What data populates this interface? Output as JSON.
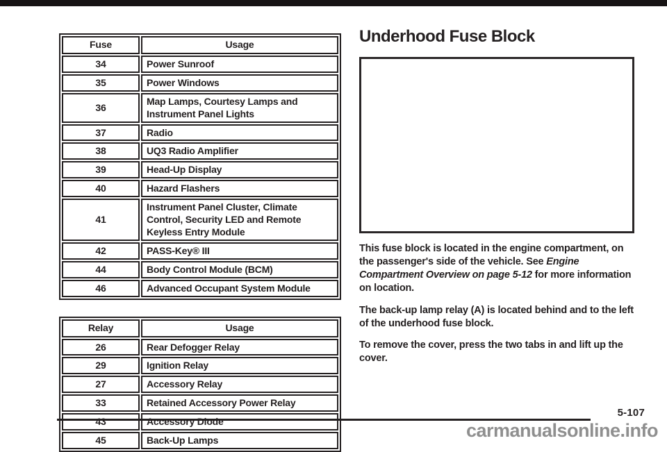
{
  "page": {
    "heading": "Underhood Fuse Block",
    "page_number": "5-107",
    "watermark": "carmanualsonline.info"
  },
  "fuse_table": {
    "headers": [
      "Fuse",
      "Usage"
    ],
    "rows": [
      {
        "num": "34",
        "usage": "Power Sunroof"
      },
      {
        "num": "35",
        "usage": "Power Windows"
      },
      {
        "num": "36",
        "usage": "Map Lamps, Courtesy Lamps and Instrument Panel Lights"
      },
      {
        "num": "37",
        "usage": "Radio"
      },
      {
        "num": "38",
        "usage": "UQ3 Radio Amplifier"
      },
      {
        "num": "39",
        "usage": "Head-Up Display"
      },
      {
        "num": "40",
        "usage": "Hazard Flashers"
      },
      {
        "num": "41",
        "usage": "Instrument Panel Cluster, Climate Control, Security LED and Remote Keyless Entry Module"
      },
      {
        "num": "42",
        "usage": "PASS-Key® III"
      },
      {
        "num": "44",
        "usage": "Body Control Module (BCM)"
      },
      {
        "num": "46",
        "usage": "Advanced Occupant System Module"
      }
    ]
  },
  "relay_table": {
    "headers": [
      "Relay",
      "Usage"
    ],
    "rows": [
      {
        "num": "26",
        "usage": "Rear Defogger Relay"
      },
      {
        "num": "29",
        "usage": "Ignition Relay"
      },
      {
        "num": "27",
        "usage": "Accessory Relay"
      },
      {
        "num": "33",
        "usage": "Retained Accessory Power Relay"
      },
      {
        "num": "43",
        "usage": "Accessory Diode"
      },
      {
        "num": "45",
        "usage": "Back-Up Lamps"
      }
    ]
  },
  "paragraphs": {
    "p1_before": "This fuse block is located in the engine compartment, on the passenger's side of the vehicle. See ",
    "p1_italic": "Engine Compartment Overview on page 5-12",
    "p1_after": " for more information on location.",
    "p2": "The back-up lamp relay (A) is located behind and to the left of the underhood fuse block.",
    "p3": "To remove the cover, press the two tabs in and lift up the cover."
  },
  "colors": {
    "text": "#242021",
    "watermark": "#8f8f8f",
    "top_bar": "#171314"
  }
}
